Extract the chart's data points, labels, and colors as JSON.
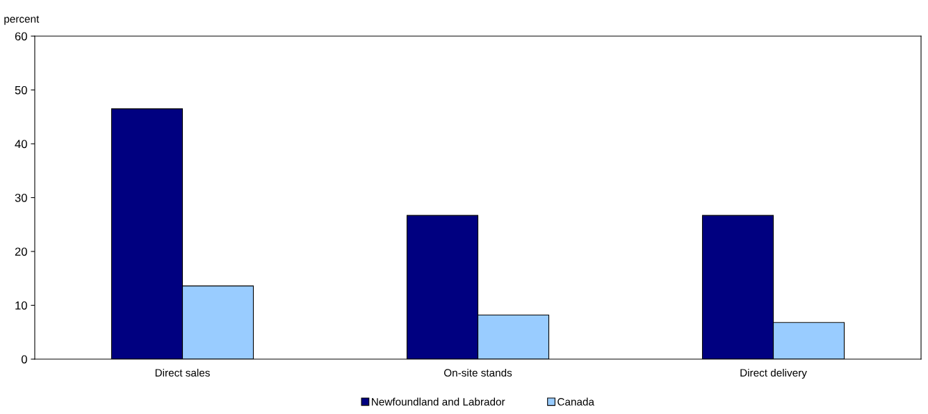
{
  "chart_data": {
    "type": "bar",
    "ylabel": "percent",
    "categories": [
      "Direct sales",
      "On-site stands",
      "Direct delivery"
    ],
    "series": [
      {
        "name": "Newfoundland and Labrador",
        "color": "#000080",
        "values": [
          46.5,
          26.7,
          26.7
        ]
      },
      {
        "name": "Canada",
        "color": "#99ccff",
        "values": [
          13.6,
          8.2,
          6.8
        ]
      }
    ],
    "ylim": [
      0,
      60
    ],
    "yticks": [
      0,
      10,
      20,
      30,
      40,
      50,
      60
    ],
    "grid": false,
    "legend": "bottom"
  }
}
